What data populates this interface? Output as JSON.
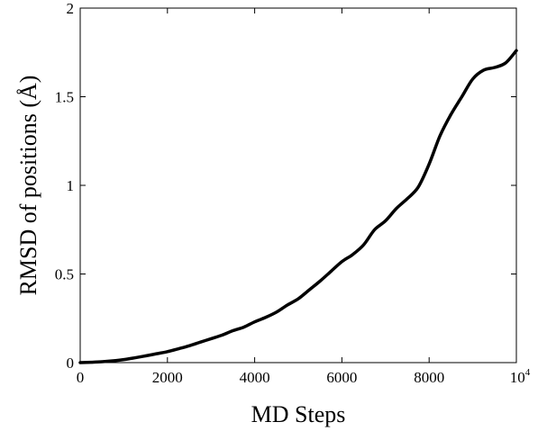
{
  "chart_data": {
    "type": "line",
    "title": "",
    "xlabel": "MD Steps",
    "ylabel": "RMSD of positions (Å)",
    "xlim": [
      0,
      10000
    ],
    "ylim": [
      0,
      2
    ],
    "grid": false,
    "legend": "none",
    "x_ticks": [
      {
        "value": 0,
        "label": "0"
      },
      {
        "value": 2000,
        "label": "2000"
      },
      {
        "value": 4000,
        "label": "4000"
      },
      {
        "value": 6000,
        "label": "6000"
      },
      {
        "value": 8000,
        "label": "8000"
      },
      {
        "value": 10000,
        "label": "10",
        "sup": "4"
      }
    ],
    "y_ticks": [
      {
        "value": 0,
        "label": "0"
      },
      {
        "value": 0.5,
        "label": "0.5"
      },
      {
        "value": 1,
        "label": "1"
      },
      {
        "value": 1.5,
        "label": "1.5"
      },
      {
        "value": 2,
        "label": "2"
      }
    ],
    "series": [
      {
        "color": "#000000",
        "x": [
          0,
          250,
          500,
          750,
          1000,
          1250,
          1500,
          1750,
          2000,
          2250,
          2500,
          2750,
          3000,
          3250,
          3500,
          3750,
          4000,
          4250,
          4500,
          4750,
          5000,
          5250,
          5500,
          5750,
          6000,
          6250,
          6500,
          6750,
          7000,
          7250,
          7500,
          7750,
          8000,
          8250,
          8500,
          8750,
          9000,
          9250,
          9500,
          9750,
          10000
        ],
        "y": [
          0,
          0.002,
          0.005,
          0.01,
          0.017,
          0.027,
          0.038,
          0.05,
          0.062,
          0.078,
          0.095,
          0.115,
          0.135,
          0.155,
          0.18,
          0.2,
          0.23,
          0.255,
          0.285,
          0.325,
          0.36,
          0.41,
          0.46,
          0.515,
          0.57,
          0.61,
          0.665,
          0.75,
          0.8,
          0.87,
          0.925,
          0.99,
          1.12,
          1.28,
          1.4,
          1.5,
          1.6,
          1.65,
          1.665,
          1.69,
          1.76
        ]
      }
    ]
  }
}
